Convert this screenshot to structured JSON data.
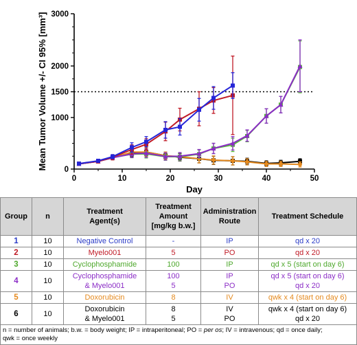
{
  "chart_data": {
    "type": "line",
    "xlabel": "Day",
    "ylabel": "Mean Tumor Volume +/- CI 95% [mm³]",
    "xlim": [
      0,
      50
    ],
    "ylim": [
      0,
      3000
    ],
    "x_ticks": [
      "0",
      "10",
      "20",
      "30",
      "40",
      "50"
    ],
    "y_ticks": [
      "0",
      "1000",
      "1500",
      "2000",
      "3000"
    ],
    "reference_line": {
      "y": 1500,
      "style": "dotted"
    },
    "series": [
      {
        "group": "1",
        "color": "#2525d8",
        "marker": "square",
        "x": [
          1,
          5,
          8,
          12,
          15,
          19,
          22,
          26,
          29,
          33
        ],
        "y": [
          105,
          160,
          240,
          420,
          530,
          760,
          820,
          1150,
          1380,
          1620
        ],
        "ci": [
          15,
          30,
          40,
          90,
          100,
          160,
          160,
          220,
          220,
          250
        ]
      },
      {
        "group": "2",
        "color": "#c01a25",
        "marker": "square",
        "x": [
          1,
          5,
          8,
          12,
          15,
          19,
          22,
          26,
          29,
          33
        ],
        "y": [
          105,
          150,
          230,
          380,
          480,
          730,
          960,
          1170,
          1330,
          1430
        ],
        "ci": [
          15,
          30,
          50,
          90,
          110,
          180,
          220,
          330,
          250,
          760
        ]
      },
      {
        "group": "3",
        "color": "#59b83c",
        "marker": "square",
        "x": [
          1,
          5,
          8,
          12,
          15,
          19,
          22,
          26,
          29,
          33,
          36,
          40,
          43,
          47
        ],
        "y": [
          100,
          155,
          225,
          290,
          295,
          240,
          240,
          290,
          400,
          470,
          640,
          1030,
          1250,
          1980
        ],
        "ci": [
          10,
          25,
          40,
          70,
          80,
          70,
          70,
          80,
          100,
          130,
          110,
          140,
          160,
          500
        ]
      },
      {
        "group": "4",
        "color": "#8b2cc6",
        "marker": "triangle",
        "x": [
          1,
          5,
          8,
          12,
          15,
          19,
          22,
          26,
          29,
          33,
          36,
          40,
          43,
          47
        ],
        "y": [
          100,
          150,
          220,
          295,
          310,
          245,
          250,
          300,
          400,
          500,
          650,
          1030,
          1250,
          2000
        ],
        "ci": [
          10,
          25,
          40,
          70,
          80,
          70,
          70,
          80,
          100,
          130,
          110,
          140,
          160,
          500
        ]
      },
      {
        "group": "5",
        "color": "#e58a1f",
        "marker": "circle",
        "x": [
          1,
          5,
          8,
          12,
          15,
          19,
          22,
          26,
          29,
          33,
          36,
          40,
          43,
          47
        ],
        "y": [
          100,
          150,
          220,
          330,
          330,
          260,
          240,
          200,
          175,
          160,
          140,
          100,
          100,
          90
        ],
        "ci": [
          10,
          25,
          40,
          70,
          80,
          70,
          70,
          80,
          80,
          80,
          60,
          50,
          50,
          50
        ]
      },
      {
        "group": "6",
        "color": "#000000",
        "marker": "square",
        "x": [
          1,
          5,
          8,
          12,
          15,
          19,
          22,
          26,
          29,
          33,
          36,
          40,
          43,
          47
        ],
        "y": [
          100,
          150,
          220,
          310,
          330,
          260,
          230,
          200,
          170,
          160,
          150,
          110,
          120,
          150
        ],
        "ci": [
          10,
          25,
          40,
          70,
          80,
          70,
          70,
          80,
          80,
          80,
          60,
          50,
          50,
          50
        ]
      }
    ]
  },
  "table": {
    "headers": {
      "group": "Group",
      "n": "n",
      "agent": [
        "Treatment",
        "Agent(s)"
      ],
      "amount": [
        "Treatment",
        "Amount",
        "[mg/kg b.w.]"
      ],
      "route": [
        "Administration",
        "Route"
      ],
      "schedule": "Treatment Schedule"
    },
    "rows": [
      {
        "group": "1",
        "n": "10",
        "agent": [
          "Negative Control"
        ],
        "amount": [
          "-"
        ],
        "route": [
          "IP"
        ],
        "schedule": [
          "qd x 20"
        ],
        "color": "#2b3cc7"
      },
      {
        "group": "2",
        "n": "10",
        "agent": [
          "Myelo001"
        ],
        "amount": [
          "5"
        ],
        "route": [
          "PO"
        ],
        "schedule": [
          "qd x 20"
        ],
        "color": "#c01a25"
      },
      {
        "group": "3",
        "n": "10",
        "agent": [
          "Cyclophosphamide"
        ],
        "amount": [
          "100"
        ],
        "route": [
          "IP"
        ],
        "schedule": [
          "qd x 5 (start on day 6)"
        ],
        "color": "#4ea82c"
      },
      {
        "group": "4",
        "n": "10",
        "agent": [
          "Cyclophosphamide",
          "& Myelo001"
        ],
        "amount": [
          "100",
          "5"
        ],
        "route": [
          "IP",
          "PO"
        ],
        "schedule": [
          "qd x 5 (start on day 6)",
          "qd x 20"
        ],
        "color": "#8b2cc6"
      },
      {
        "group": "5",
        "n": "10",
        "agent": [
          "Doxorubicin"
        ],
        "amount": [
          "8"
        ],
        "route": [
          "IV"
        ],
        "schedule": [
          "qwk x 4 (start on day 6)"
        ],
        "color": "#e58a1f"
      },
      {
        "group": "6",
        "n": "10",
        "agent": [
          "Doxorubicin",
          "& Myelo001"
        ],
        "amount": [
          "8",
          "5"
        ],
        "route": [
          "IV",
          "PO"
        ],
        "schedule": [
          "qwk x 4 (start on day 6)",
          "qd x 20"
        ],
        "color": "#000000"
      }
    ],
    "footnote": [
      "n = number of animals; b.w. = body weight; IP = intraperitoneal; PO = ",
      "per os",
      "; IV = intravenous; qd = once daily;",
      "qwk = once weekly"
    ]
  }
}
